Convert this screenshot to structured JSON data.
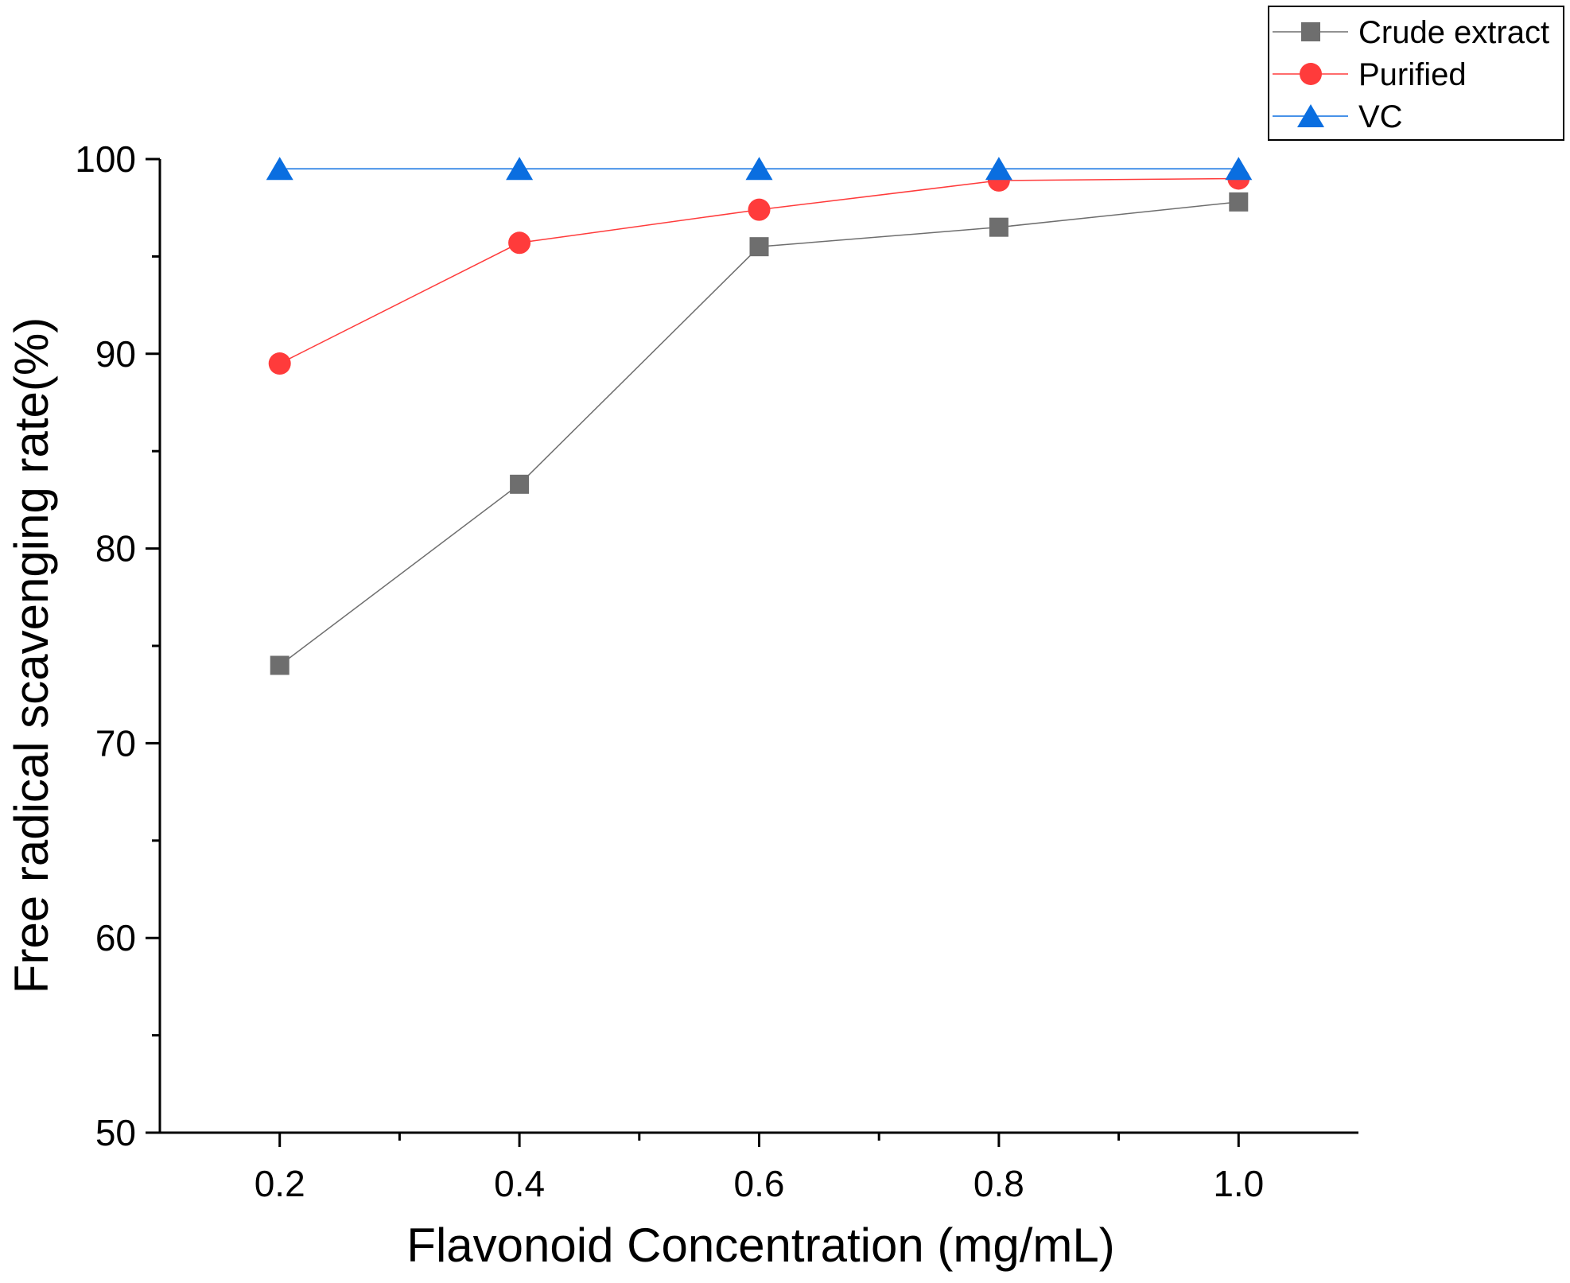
{
  "chart_data": {
    "type": "line",
    "title": "",
    "xlabel": "Flavonoid Concentration (mg/mL)",
    "ylabel": "Free radical scavenging rate(%)",
    "x": [
      0.2,
      0.4,
      0.6,
      0.8,
      1.0
    ],
    "xlim": [
      0.1,
      1.1
    ],
    "ylim": [
      50,
      100
    ],
    "xticks": [
      0.2,
      0.4,
      0.6,
      0.8,
      1.0
    ],
    "xtick_labels": [
      "0.2",
      "0.4",
      "0.6",
      "0.8",
      "1.0"
    ],
    "yticks": [
      50,
      60,
      70,
      80,
      90,
      100
    ],
    "ytick_labels": [
      "50",
      "60",
      "70",
      "80",
      "90",
      "100"
    ],
    "grid": false,
    "legend_position": "top-right",
    "series": [
      {
        "name": "Crude extract",
        "marker": "square",
        "color": "#6e6e6e",
        "values": [
          74.0,
          83.3,
          95.5,
          96.5,
          97.8
        ]
      },
      {
        "name": "Purified",
        "marker": "circle",
        "color": "#ff3b3b",
        "values": [
          89.5,
          95.7,
          97.4,
          98.9,
          99.0
        ]
      },
      {
        "name": "VC",
        "marker": "triangle",
        "color": "#0a6ee0",
        "values": [
          99.5,
          99.5,
          99.5,
          99.5,
          99.5
        ]
      }
    ]
  }
}
